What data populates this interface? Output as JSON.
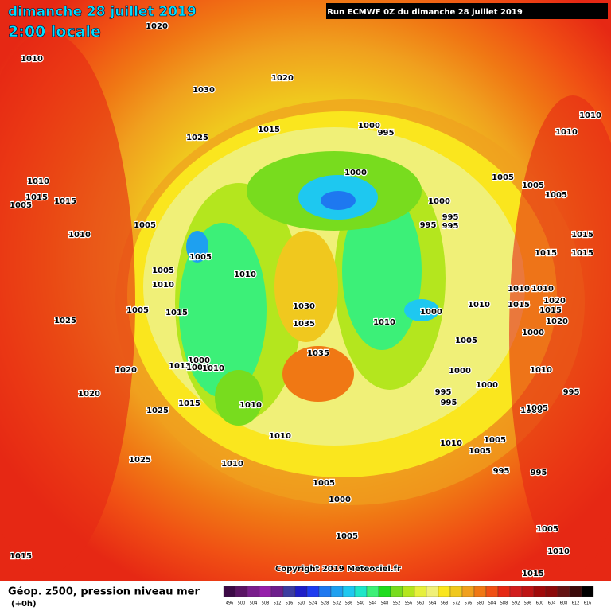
{
  "header": {
    "title": "dimanche 28 juillet 2019",
    "time": "2:00 locale",
    "run": "Run ECMWF 0Z du dimanche 28 juillet 2019"
  },
  "map": {
    "pressure_labels": [
      "1020",
      "1010",
      "1020",
      "1030",
      "1010",
      "1010",
      "1000",
      "995",
      "1015",
      "1025",
      "1000",
      "1005",
      "1005",
      "1005",
      "1000",
      "995",
      "995",
      "995",
      "1010",
      "1015",
      "1005",
      "1015",
      "1010",
      "1005",
      "1015",
      "1005",
      "1015",
      "1015",
      "1005",
      "1010",
      "1010",
      "1010",
      "1010",
      "1030",
      "1010",
      "1015",
      "1015",
      "1005",
      "1000",
      "1015",
      "1020",
      "1025",
      "1035",
      "1010",
      "1020",
      "1035",
      "1005",
      "1000",
      "1000",
      "1015",
      "1005",
      "1010",
      "1020",
      "1000",
      "1010",
      "1000",
      "995",
      "995",
      "1020",
      "1025",
      "1015",
      "1010",
      "1000",
      "995",
      "1005",
      "1010",
      "1010",
      "1005",
      "1005",
      "1025",
      "1010",
      "995",
      "995",
      "1005",
      "1000",
      "1005",
      "1005",
      "1010",
      "1015",
      "1015"
    ]
  },
  "footer": {
    "copyright": "Copyright 2019 Meteociel.fr",
    "title": "Géop. z500, pression niveau mer",
    "subtitle": "(+0h)"
  },
  "legend": {
    "values": [
      496,
      500,
      504,
      508,
      512,
      516,
      520,
      524,
      528,
      532,
      536,
      540,
      544,
      548,
      552,
      556,
      560,
      564,
      568,
      572,
      576,
      580,
      584,
      588,
      592,
      596,
      600,
      604,
      608,
      612,
      616
    ],
    "colors": [
      "#3c0a46",
      "#5a1464",
      "#7a1e8c",
      "#961eaa",
      "#6e1e8c",
      "#3c3ca0",
      "#1e1ec8",
      "#1e3cf0",
      "#1e78f0",
      "#1ea0f0",
      "#1ec8f0",
      "#1ee6c8",
      "#3cf078",
      "#1edc1e",
      "#78dc1e",
      "#b4e61e",
      "#e6f03c",
      "#f0f078",
      "#fae61e",
      "#f0c81e",
      "#f0a01e",
      "#f07814",
      "#f05014",
      "#e62814",
      "#d21e1e",
      "#be1414",
      "#a00a0a",
      "#8c0a0a",
      "#641414",
      "#3c0a0a",
      "#000000"
    ]
  }
}
